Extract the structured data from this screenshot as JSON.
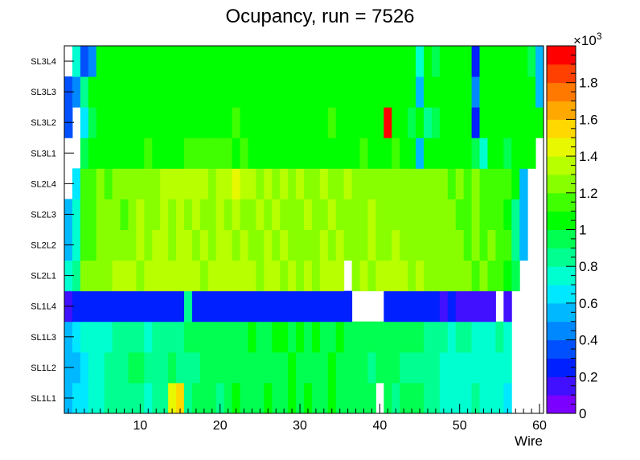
{
  "chart_data": {
    "type": "heatmap",
    "title": "Ocupancy, run = 7526",
    "xlabel": "Wire",
    "ylabel": "",
    "x_range": [
      0.5,
      60.5
    ],
    "x_ticks": [
      10,
      20,
      30,
      40,
      50,
      60
    ],
    "y_categories": [
      "SL1L1",
      "SL1L2",
      "SL1L3",
      "SL1L4",
      "SL2L1",
      "SL2L2",
      "SL2L3",
      "SL2L4",
      "SL3L1",
      "SL3L2",
      "SL3L3",
      "SL3L4"
    ],
    "z_range": [
      0,
      2000
    ],
    "z_ticks": [
      0,
      200,
      400,
      600,
      800,
      1000,
      1200,
      1400,
      1600,
      1800
    ],
    "z_tick_labels": [
      "0",
      "0.2",
      "0.4",
      "0.6",
      "0.8",
      "1",
      "1.2",
      "1.4",
      "1.6",
      "1.8"
    ],
    "z_exponent_label": "×10",
    "z_exponent": "3",
    "palette": [
      "#7b00ff",
      "#4010ff",
      "#0020ff",
      "#0050ff",
      "#0088ff",
      "#00b8ff",
      "#00e8ff",
      "#00ffd0",
      "#00ff90",
      "#00ff50",
      "#00ff00",
      "#40ff00",
      "#88ff00",
      "#b8ff00",
      "#e8f800",
      "#ffd800",
      "#ffa800",
      "#ff7800",
      "#ff4000",
      "#ff0000"
    ],
    "rows": {
      "SL1L1": [
        500,
        600,
        650,
        700,
        750,
        800,
        850,
        850,
        800,
        800,
        750,
        800,
        850,
        1450,
        1500,
        800,
        900,
        950,
        900,
        850,
        900,
        1000,
        950,
        900,
        950,
        1000,
        950,
        900,
        1000,
        950,
        1000,
        950,
        900,
        1000,
        950,
        900,
        950,
        950,
        950,
        null,
        900,
        850,
        900,
        900,
        900,
        850,
        800,
        700,
        750,
        700,
        750,
        800,
        750,
        700,
        750,
        650,
        null,
        null,
        null,
        null
      ],
      "SL1L2": [
        500,
        550,
        650,
        700,
        750,
        800,
        850,
        800,
        900,
        900,
        800,
        850,
        850,
        900,
        850,
        800,
        850,
        900,
        950,
        900,
        900,
        950,
        900,
        950,
        900,
        950,
        950,
        900,
        1000,
        900,
        950,
        900,
        950,
        1000,
        900,
        950,
        950,
        900,
        850,
        900,
        900,
        900,
        850,
        850,
        850,
        800,
        800,
        750,
        700,
        750,
        750,
        700,
        700,
        700,
        750,
        700,
        null,
        null,
        null,
        null
      ],
      "SL1L3": [
        500,
        600,
        700,
        750,
        700,
        750,
        800,
        800,
        800,
        800,
        750,
        800,
        850,
        850,
        800,
        900,
        900,
        900,
        950,
        950,
        950,
        950,
        950,
        1000,
        950,
        950,
        1000,
        1000,
        950,
        1000,
        950,
        1000,
        950,
        950,
        1000,
        950,
        950,
        900,
        950,
        950,
        900,
        900,
        950,
        900,
        900,
        850,
        850,
        800,
        750,
        800,
        800,
        750,
        750,
        750,
        800,
        700,
        null,
        null,
        null,
        null
      ],
      "SL1L4": [
        100,
        200,
        200,
        200,
        200,
        200,
        200,
        200,
        200,
        200,
        200,
        200,
        200,
        200,
        200,
        850,
        200,
        200,
        200,
        200,
        200,
        200,
        200,
        200,
        200,
        200,
        200,
        200,
        200,
        200,
        200,
        200,
        200,
        200,
        200,
        200,
        null,
        null,
        null,
        null,
        200,
        200,
        200,
        200,
        200,
        200,
        200,
        150,
        200,
        150,
        150,
        150,
        150,
        150,
        null,
        100,
        null,
        null,
        null,
        null
      ],
      "SL2L1": [
        700,
        800,
        1200,
        1250,
        1250,
        1250,
        1350,
        1300,
        1300,
        1250,
        1350,
        1300,
        1350,
        1350,
        1300,
        1350,
        1300,
        1250,
        1300,
        1300,
        1300,
        1350,
        1300,
        1300,
        1250,
        1300,
        1300,
        1250,
        1300,
        1250,
        1300,
        1250,
        1300,
        1300,
        1300,
        null,
        1250,
        1300,
        1250,
        1300,
        1300,
        1300,
        1300,
        1250,
        1300,
        1250,
        1250,
        1200,
        1250,
        1200,
        1250,
        1150,
        1200,
        1150,
        1150,
        1050,
        900,
        null,
        null,
        null
      ],
      "SL2L2": [
        550,
        700,
        1150,
        1150,
        1200,
        1200,
        1250,
        1250,
        1250,
        1300,
        1250,
        1300,
        1300,
        1250,
        1300,
        1300,
        1250,
        1300,
        1250,
        1300,
        1300,
        1250,
        1300,
        1250,
        1250,
        1300,
        1250,
        1300,
        1250,
        1200,
        1250,
        1250,
        1300,
        1250,
        1300,
        1250,
        1200,
        1250,
        1300,
        1250,
        1250,
        1300,
        1250,
        1250,
        1200,
        1250,
        1200,
        1200,
        1250,
        1200,
        1150,
        1200,
        1150,
        1200,
        1100,
        1100,
        800,
        500,
        null,
        null
      ],
      "SL2L3": [
        500,
        700,
        1150,
        1150,
        1200,
        1200,
        1250,
        1100,
        1250,
        1300,
        1250,
        1250,
        1300,
        1250,
        1300,
        1250,
        1300,
        1250,
        1250,
        1300,
        1250,
        1300,
        1250,
        1250,
        1300,
        1250,
        1300,
        1250,
        1200,
        1250,
        1300,
        1250,
        1250,
        1300,
        1250,
        1200,
        1250,
        1250,
        1300,
        1250,
        1250,
        1250,
        1200,
        1250,
        1200,
        1250,
        1200,
        1200,
        1200,
        1150,
        1150,
        1200,
        1150,
        1150,
        1100,
        1050,
        800,
        500,
        null,
        null
      ],
      "SL2L4": [
        null,
        600,
        1150,
        1150,
        1200,
        1150,
        1200,
        1200,
        1200,
        1250,
        1200,
        1250,
        1350,
        1350,
        1350,
        1300,
        1300,
        1300,
        1250,
        1300,
        1350,
        1450,
        1300,
        1300,
        1250,
        1300,
        1250,
        1300,
        1250,
        1300,
        1250,
        1250,
        1300,
        1250,
        1250,
        1300,
        1250,
        1250,
        1200,
        1250,
        1250,
        1200,
        1250,
        1200,
        1250,
        1250,
        1200,
        1200,
        1150,
        1200,
        1150,
        1200,
        1150,
        1150,
        1100,
        1100,
        1050,
        500,
        null,
        null
      ],
      "SL3L1": [
        null,
        null,
        900,
        1000,
        1050,
        1050,
        1000,
        1050,
        1000,
        1050,
        1100,
        1050,
        1050,
        1000,
        1050,
        1100,
        1100,
        1100,
        1150,
        1100,
        1100,
        1050,
        1100,
        1050,
        1050,
        1000,
        1050,
        1050,
        1000,
        1050,
        1050,
        1000,
        1050,
        1050,
        1000,
        1050,
        1050,
        1100,
        1050,
        1050,
        1050,
        1100,
        1050,
        1000,
        500,
        1000,
        1050,
        1050,
        1000,
        1050,
        1050,
        950,
        700,
        1000,
        1000,
        950,
        1000,
        1000,
        1000,
        null
      ],
      "SL3L2": [
        300,
        null,
        650,
        900,
        1000,
        1050,
        1000,
        1000,
        1050,
        1050,
        1000,
        1050,
        1050,
        1050,
        1000,
        1050,
        1050,
        1050,
        1000,
        1050,
        1050,
        1100,
        1050,
        1000,
        1050,
        1050,
        1050,
        1000,
        1050,
        1050,
        1000,
        1050,
        1050,
        1100,
        1050,
        1050,
        1050,
        1050,
        1000,
        1050,
        2000,
        1000,
        1050,
        900,
        1000,
        850,
        950,
        1000,
        1050,
        1000,
        1000,
        200,
        1000,
        1000,
        1000,
        1050,
        1000,
        1000,
        1000,
        1000
      ],
      "SL3L3": [
        300,
        400,
        850,
        1000,
        1050,
        1050,
        1000,
        1050,
        1000,
        1000,
        1050,
        1050,
        1050,
        1000,
        1000,
        1050,
        1050,
        1050,
        1000,
        1050,
        1050,
        1050,
        1050,
        1000,
        1050,
        1050,
        1000,
        1050,
        1000,
        1050,
        1050,
        1050,
        1000,
        1050,
        1050,
        1000,
        1050,
        1050,
        1000,
        1050,
        1050,
        1050,
        1050,
        1000,
        500,
        1000,
        1050,
        1050,
        1000,
        1050,
        1000,
        400,
        1000,
        1000,
        1000,
        1050,
        1000,
        1000,
        1000,
        500
      ],
      "SL3L4": [
        null,
        700,
        300,
        400,
        1000,
        1000,
        1050,
        1050,
        1000,
        1050,
        1000,
        1050,
        1000,
        1050,
        1050,
        1000,
        1050,
        1000,
        1050,
        1050,
        1050,
        1000,
        1050,
        1050,
        1000,
        1050,
        1000,
        1000,
        1050,
        1050,
        1000,
        1050,
        1000,
        1050,
        1050,
        1000,
        1050,
        1000,
        1050,
        1000,
        1050,
        1050,
        1000,
        1050,
        700,
        1000,
        950,
        1000,
        1050,
        1000,
        1000,
        200,
        1000,
        1000,
        1000,
        1000,
        1000,
        1000,
        950,
        500
      ]
    }
  }
}
